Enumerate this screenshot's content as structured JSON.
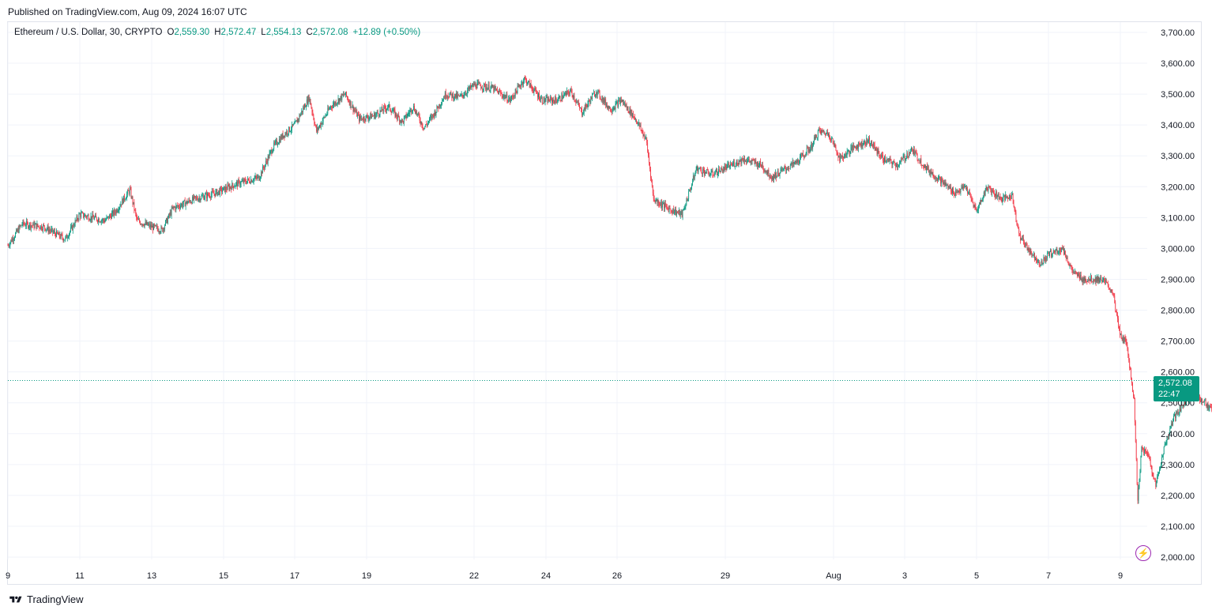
{
  "header": {
    "published": "Published on TradingView.com, Aug 09, 2024 16:07 UTC"
  },
  "legend": {
    "symbol": "Ethereum / U.S. Dollar, 30, CRYPTO",
    "open_label": "O",
    "open": "2,559.30",
    "high_label": "H",
    "high": "2,572.47",
    "low_label": "L",
    "low": "2,554.13",
    "close_label": "C",
    "close": "2,572.08",
    "change": "+12.89 (+0.50%)"
  },
  "price_tag": {
    "price": "2,572.08",
    "countdown": "22:47"
  },
  "footer": {
    "brand": "TradingView"
  },
  "colors": {
    "up": "#089981",
    "down": "#f23645",
    "grid": "#f0f3fa",
    "accent": "#9c27b0"
  },
  "icons": {
    "brand": "tradingview-logo-icon",
    "bolt": "lightning-bolt-icon"
  },
  "chart_data": {
    "type": "candlestick",
    "symbol": "ETHUSD",
    "interval": "30",
    "ylim": [
      2000,
      3700
    ],
    "y_ticks": [
      "2,000.00",
      "2,100.00",
      "2,200.00",
      "2,300.00",
      "2,400.00",
      "2,500.00",
      "2,600.00",
      "2,700.00",
      "2,800.00",
      "2,900.00",
      "3,000.00",
      "3,100.00",
      "3,200.00",
      "3,300.00",
      "3,400.00",
      "3,500.00",
      "3,600.00",
      "3,700.00"
    ],
    "x_ticks": [
      "9",
      "11",
      "13",
      "15",
      "17",
      "19",
      "22",
      "24",
      "26",
      "29",
      "Aug",
      "3",
      "5",
      "7",
      "9"
    ],
    "last_price": 2572.08,
    "grid": true,
    "price_path": [
      [
        0,
        3010
      ],
      [
        0.4,
        3080
      ],
      [
        1.0,
        3070
      ],
      [
        1.6,
        3030
      ],
      [
        2.0,
        3110
      ],
      [
        2.7,
        3090
      ],
      [
        3.0,
        3120
      ],
      [
        3.4,
        3190
      ],
      [
        3.6,
        3090
      ],
      [
        4.0,
        3070
      ],
      [
        4.3,
        3060
      ],
      [
        4.6,
        3130
      ],
      [
        5.2,
        3160
      ],
      [
        5.8,
        3180
      ],
      [
        6.4,
        3210
      ],
      [
        7.0,
        3230
      ],
      [
        7.4,
        3330
      ],
      [
        7.7,
        3370
      ],
      [
        8.0,
        3400
      ],
      [
        8.4,
        3490
      ],
      [
        8.6,
        3380
      ],
      [
        9.0,
        3460
      ],
      [
        9.4,
        3500
      ],
      [
        9.8,
        3420
      ],
      [
        10.2,
        3430
      ],
      [
        10.6,
        3460
      ],
      [
        11.0,
        3410
      ],
      [
        11.3,
        3460
      ],
      [
        11.6,
        3390
      ],
      [
        11.9,
        3440
      ],
      [
        12.2,
        3500
      ],
      [
        12.6,
        3490
      ],
      [
        13.0,
        3530
      ],
      [
        13.5,
        3520
      ],
      [
        14.0,
        3480
      ],
      [
        14.4,
        3550
      ],
      [
        14.9,
        3480
      ],
      [
        15.3,
        3480
      ],
      [
        15.7,
        3510
      ],
      [
        16.0,
        3440
      ],
      [
        16.4,
        3510
      ],
      [
        16.8,
        3450
      ],
      [
        17.1,
        3480
      ],
      [
        17.5,
        3420
      ],
      [
        17.8,
        3350
      ],
      [
        18.0,
        3160
      ],
      [
        18.4,
        3130
      ],
      [
        18.8,
        3110
      ],
      [
        19.2,
        3260
      ],
      [
        19.6,
        3240
      ],
      [
        20.0,
        3260
      ],
      [
        20.5,
        3290
      ],
      [
        21.0,
        3270
      ],
      [
        21.3,
        3230
      ],
      [
        21.7,
        3260
      ],
      [
        22.0,
        3280
      ],
      [
        22.4,
        3330
      ],
      [
        22.6,
        3380
      ],
      [
        22.9,
        3370
      ],
      [
        23.2,
        3290
      ],
      [
        23.6,
        3330
      ],
      [
        24.0,
        3350
      ],
      [
        24.4,
        3290
      ],
      [
        24.8,
        3270
      ],
      [
        25.2,
        3320
      ],
      [
        25.6,
        3260
      ],
      [
        26.0,
        3220
      ],
      [
        26.4,
        3180
      ],
      [
        26.7,
        3200
      ],
      [
        27.0,
        3120
      ],
      [
        27.3,
        3200
      ],
      [
        27.7,
        3160
      ],
      [
        28.0,
        3170
      ],
      [
        28.2,
        3040
      ],
      [
        28.5,
        2990
      ],
      [
        28.8,
        2950
      ],
      [
        29.0,
        2980
      ],
      [
        29.4,
        3000
      ],
      [
        29.7,
        2920
      ],
      [
        30.0,
        2900
      ],
      [
        30.5,
        2900
      ],
      [
        30.8,
        2860
      ],
      [
        31.0,
        2720
      ],
      [
        31.2,
        2690
      ],
      [
        31.4,
        2500
      ],
      [
        31.5,
        2180
      ],
      [
        31.6,
        2350
      ],
      [
        31.8,
        2330
      ],
      [
        32.0,
        2230
      ],
      [
        32.2,
        2340
      ],
      [
        32.5,
        2450
      ],
      [
        32.8,
        2500
      ],
      [
        33.0,
        2530
      ],
      [
        33.2,
        2520
      ],
      [
        33.6,
        2470
      ],
      [
        34.0,
        2510
      ],
      [
        34.4,
        2480
      ],
      [
        34.8,
        2540
      ],
      [
        35.0,
        2500
      ],
      [
        35.3,
        2400
      ],
      [
        35.6,
        2330
      ],
      [
        35.9,
        2360
      ],
      [
        36.2,
        2440
      ],
      [
        36.5,
        2430
      ],
      [
        36.8,
        2480
      ],
      [
        37.0,
        2550
      ],
      [
        37.2,
        2580
      ],
      [
        37.5,
        2580
      ],
      [
        37.7,
        2690
      ],
      [
        38.0,
        2680
      ],
      [
        38.3,
        2640
      ],
      [
        38.6,
        2572.08
      ]
    ]
  }
}
